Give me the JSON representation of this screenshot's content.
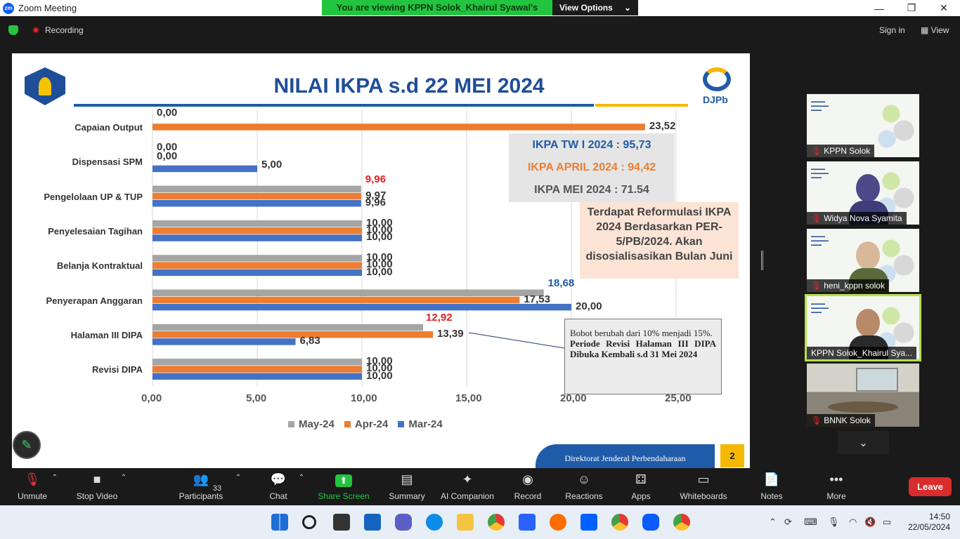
{
  "window": {
    "app_icon": "zm",
    "title": "Zoom Meeting"
  },
  "viewing_banner": {
    "message": "You are viewing KPPN Solok_Khairul Syawal's screen",
    "options_label": "View Options"
  },
  "topbar": {
    "recording": "Recording",
    "signin": "Sign in",
    "view": "View"
  },
  "slide": {
    "title": "NILAI IKPA s.d 22 MEI 2024",
    "logo_text": "DJPb",
    "ikpa_tw1": "IKPA TW I 2024 : 95,73",
    "ikpa_april": "IKPA APRIL 2024 : 94,42",
    "ikpa_mei": "IKPA MEI 2024 : 71.54",
    "reformulasi": "Terdapat Reformulasi IKPA 2024 Berdasarkan PER-5/PB/2024. Akan disosialisasikan Bulan Juni",
    "note_line1": "Bobot   berubah dari 10% menjadi 15%.",
    "note_line2": "Periode Revisi Halaman III DIPA Dibuka Kembali s.d 31 Mei 2024",
    "footer": "Direktorat Jenderal Perbendaharaan",
    "page_number": "2",
    "colors": {
      "may": "#a5a5a5",
      "apr": "#ed7d31",
      "mar": "#4472c4",
      "title": "#1f4e99"
    }
  },
  "chart_data": {
    "type": "bar",
    "orientation": "horizontal",
    "categories": [
      "Capaian Output",
      "Dispensasi SPM",
      "Pengelolaan UP & TUP",
      "Penyelesaian Tagihan",
      "Belanja Kontraktual",
      "Penyerapan Anggaran",
      "Halaman III DIPA",
      "Revisi DIPA"
    ],
    "series": [
      {
        "name": "May-24",
        "values": [
          0.0,
          0.0,
          9.96,
          10.0,
          10.0,
          18.68,
          12.92,
          10.0
        ],
        "labels": [
          "0,00",
          "0,00",
          "9,96",
          "10,00",
          "10,00",
          "18,68",
          "12,92",
          "10,00"
        ]
      },
      {
        "name": "Apr-24",
        "values": [
          23.52,
          0.0,
          9.97,
          10.0,
          10.0,
          17.53,
          13.39,
          10.0
        ],
        "labels": [
          "23,52",
          "0,00",
          "9,97",
          "10,00",
          "10,00",
          "17,53",
          "13,39",
          "10,00"
        ]
      },
      {
        "name": "Mar-24",
        "values": [
          0.0,
          5.0,
          9.96,
          10.0,
          10.0,
          20.0,
          6.83,
          10.0
        ],
        "labels": [
          "",
          "5,00",
          "9,96",
          "10,00",
          "10,00",
          "20,00",
          "6,83",
          "10,00"
        ]
      }
    ],
    "xticks": [
      "0,00",
      "5,00",
      "10,00",
      "15,00",
      "20,00",
      "25,00"
    ],
    "xlim": [
      0,
      25
    ],
    "grid": true,
    "legend": "bottom"
  },
  "gallery": [
    {
      "name": "KPPN Solok",
      "type": "slide"
    },
    {
      "name": "Widya Nova Syamita",
      "type": "person"
    },
    {
      "name": "heni_kppn solok",
      "type": "person"
    },
    {
      "name": "KPPN Solok_Khairul Sya...",
      "type": "person"
    },
    {
      "name": "BNNK Solok",
      "type": "room"
    }
  ],
  "toolbar": {
    "unmute": "Unmute",
    "stop_video": "Stop Video",
    "participants": "Participants",
    "participants_count": "33",
    "chat": "Chat",
    "share_screen": "Share Screen",
    "summary": "Summary",
    "ai_companion": "AI Companion",
    "record": "Record",
    "reactions": "Reactions",
    "apps": "Apps",
    "whiteboards": "Whiteboards",
    "notes": "Notes",
    "more": "More",
    "leave": "Leave"
  },
  "taskbar": {
    "time": "14:50",
    "date": "22/05/2024"
  }
}
